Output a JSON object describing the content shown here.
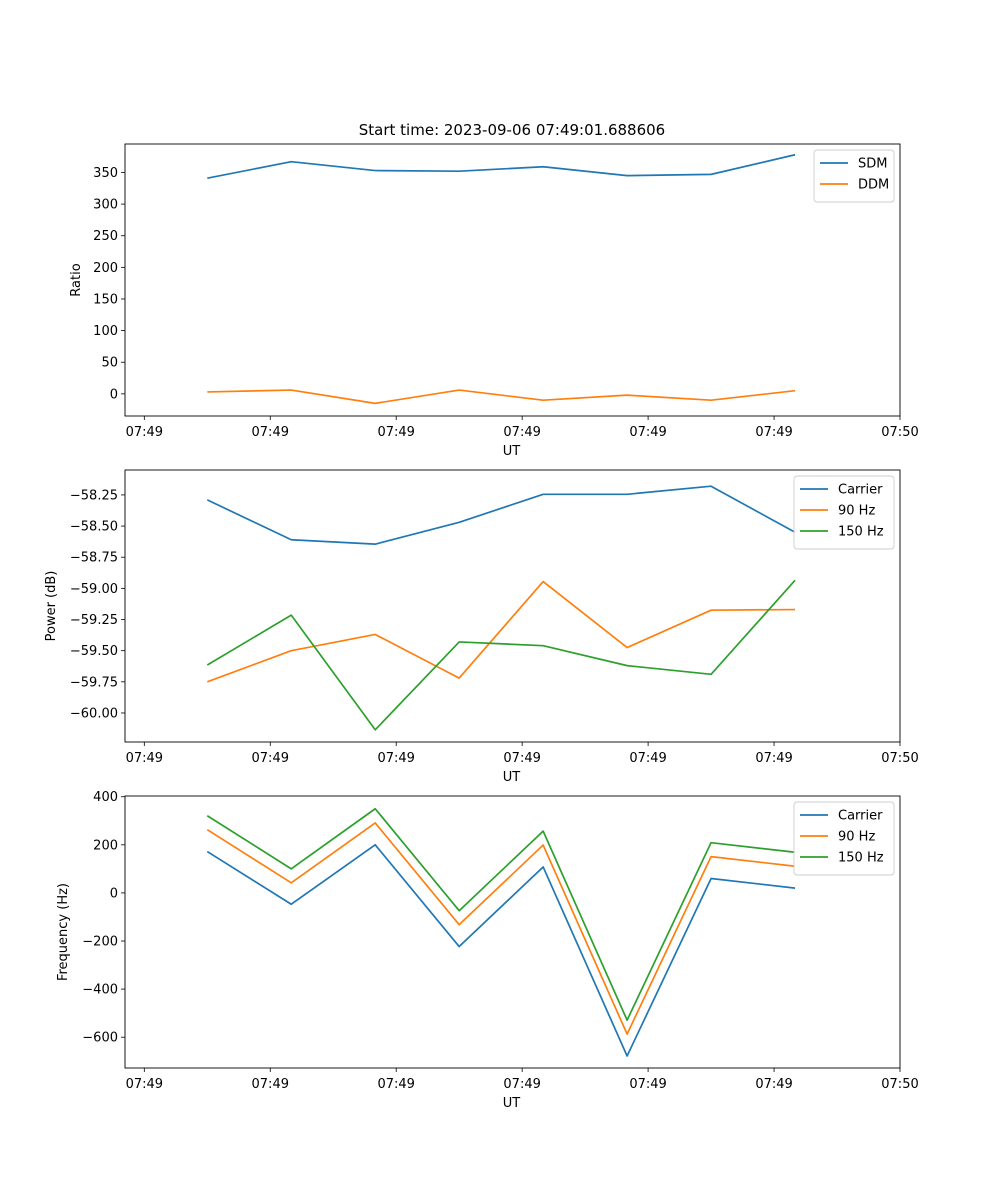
{
  "figure_title": "Start time: 2023-09-06 07:49:01.688606",
  "colors": {
    "blue": "#1f77b4",
    "orange": "#ff7f0e",
    "green": "#2ca02c"
  },
  "chart_data": [
    {
      "type": "line",
      "title": "Start time: 2023-09-06 07:49:01.688606",
      "xlabel": "UT",
      "ylabel": "Ratio",
      "xlim": [
        -0.23,
        9
      ],
      "ylim": [
        -35,
        395
      ],
      "x": [
        0.75,
        1.75,
        2.75,
        3.75,
        4.75,
        5.75,
        6.75,
        7.75
      ],
      "x_ticks": [
        0,
        1.5,
        3,
        4.5,
        6,
        7.5,
        9
      ],
      "x_tick_labels": [
        "07:49",
        "07:49",
        "07:49",
        "07:49",
        "07:49",
        "07:49",
        "07:50"
      ],
      "y_ticks": [
        0,
        50,
        100,
        150,
        200,
        250,
        300,
        350
      ],
      "y_tick_labels": [
        "0",
        "50",
        "100",
        "150",
        "200",
        "250",
        "300",
        "350"
      ],
      "legend_position": "upper-right",
      "series": [
        {
          "name": "SDM",
          "color": "#1f77b4",
          "values": [
            341,
            367,
            353,
            352,
            359,
            345,
            347,
            378
          ]
        },
        {
          "name": "DDM",
          "color": "#ff7f0e",
          "values": [
            3,
            6,
            -15,
            6,
            -10,
            -2,
            -10,
            5
          ]
        }
      ]
    },
    {
      "type": "line",
      "title": "",
      "xlabel": "UT",
      "ylabel": "Power (dB)",
      "xlim": [
        -0.23,
        9
      ],
      "ylim": [
        -60.233,
        -58.05
      ],
      "x": [
        0.75,
        1.75,
        2.75,
        3.75,
        4.75,
        5.75,
        6.75,
        7.75
      ],
      "x_ticks": [
        0,
        1.5,
        3,
        4.5,
        6,
        7.5,
        9
      ],
      "x_tick_labels": [
        "07:49",
        "07:49",
        "07:49",
        "07:49",
        "07:49",
        "07:49",
        "07:50"
      ],
      "y_ticks": [
        -60.0,
        -59.75,
        -59.5,
        -59.25,
        -59.0,
        -58.75,
        -58.5,
        -58.25
      ],
      "y_tick_labels": [
        "−60.00",
        "−59.75",
        "−59.50",
        "−59.25",
        "−59.00",
        "−58.75",
        "−58.50",
        "−58.25"
      ],
      "legend_position": "upper-right",
      "series": [
        {
          "name": "Carrier",
          "color": "#1f77b4",
          "values": [
            -58.29,
            -58.61,
            -58.645,
            -58.47,
            -58.245,
            -58.245,
            -58.18,
            -58.55
          ]
        },
        {
          "name": "90 Hz",
          "color": "#ff7f0e",
          "values": [
            -59.75,
            -59.5,
            -59.37,
            -59.72,
            -58.945,
            -59.475,
            -59.175,
            -59.17
          ]
        },
        {
          "name": "150 Hz",
          "color": "#2ca02c",
          "values": [
            -59.615,
            -59.215,
            -60.135,
            -59.43,
            -59.46,
            -59.62,
            -59.69,
            -58.935
          ]
        }
      ]
    },
    {
      "type": "line",
      "title": "",
      "xlabel": "UT",
      "ylabel": "Frequency (Hz)",
      "xlim": [
        -0.23,
        9
      ],
      "ylim": [
        -728,
        403
      ],
      "x": [
        0.75,
        1.75,
        2.75,
        3.75,
        4.75,
        5.75,
        6.75,
        7.75
      ],
      "x_ticks": [
        0,
        1.5,
        3,
        4.5,
        6,
        7.5,
        9
      ],
      "x_tick_labels": [
        "07:49",
        "07:49",
        "07:49",
        "07:49",
        "07:49",
        "07:49",
        "07:50"
      ],
      "y_ticks": [
        -600,
        -400,
        -200,
        0,
        200,
        400
      ],
      "y_tick_labels": [
        "−600",
        "−400",
        "−200",
        "0",
        "200",
        "400"
      ],
      "legend_position": "upper-right",
      "series": [
        {
          "name": "Carrier",
          "color": "#1f77b4",
          "values": [
            172,
            -47,
            200,
            -223,
            108,
            -678,
            60,
            20
          ]
        },
        {
          "name": "90 Hz",
          "color": "#ff7f0e",
          "values": [
            263,
            42,
            291,
            -132,
            199,
            -587,
            151,
            111
          ]
        },
        {
          "name": "150 Hz",
          "color": "#2ca02c",
          "values": [
            321,
            100,
            350,
            -74,
            257,
            -529,
            209,
            169
          ]
        }
      ]
    }
  ]
}
